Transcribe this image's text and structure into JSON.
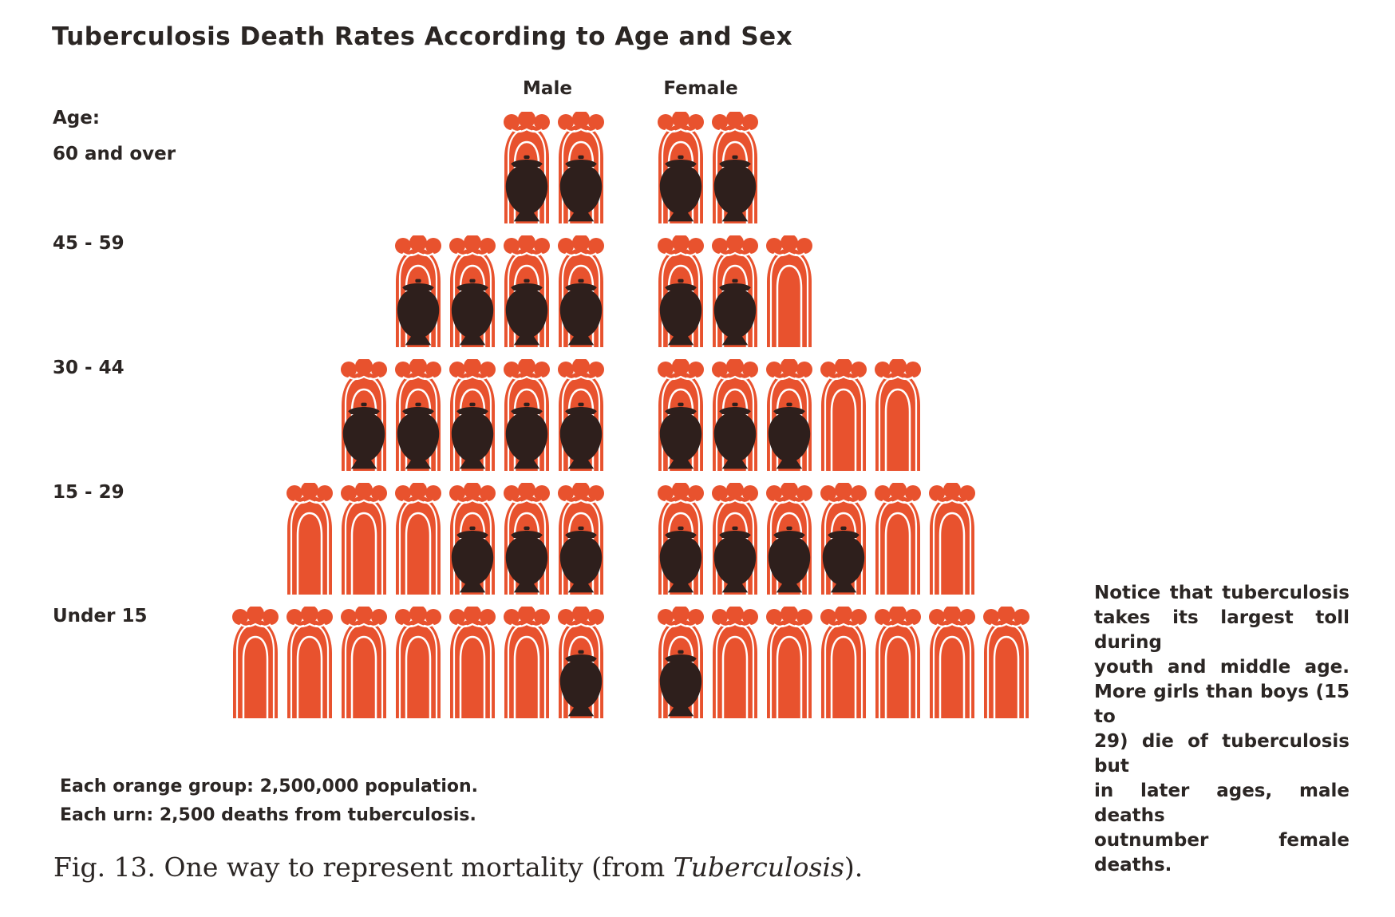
{
  "title": "Tuberculosis Death Rates According to Age and Sex",
  "columns": {
    "male": "Male",
    "female": "Female"
  },
  "age_heading": "Age:",
  "note_lines": [
    "Notice that tuberculosis",
    "takes its largest toll during",
    "youth and middle age.",
    "More girls than boys (15 to",
    "29) die of tuberculosis but",
    "in later ages, male deaths",
    "outnumber female deaths."
  ],
  "legend": {
    "population_line": "Each orange group: 2,500,000 population.",
    "urn_line": "Each urn: 2,500 deaths from tuberculosis."
  },
  "caption": {
    "prefix": "Fig. 13. One way to represent mortality (from ",
    "italic": "Tuberculosis",
    "suffix": ")."
  },
  "colors": {
    "population": "#e8522e",
    "urn": "#2e1f1c",
    "text": "#2b2624"
  },
  "icons": {
    "population": "people-group-icon",
    "deaths": "urn-icon"
  },
  "chart_data": {
    "type": "pictogram",
    "title": "Tuberculosis Death Rates According to Age and Sex",
    "population_unit": "Each orange group: 2,500,000 population.",
    "death_unit": "Each urn: 2,500 deaths from tuberculosis.",
    "categories": [
      "60 and over",
      "45 - 59",
      "30 - 44",
      "15 - 29",
      "Under 15"
    ],
    "series": [
      {
        "name": "Male",
        "population_groups": [
          2.2,
          4.3,
          5.5,
          6.6,
          7.5
        ],
        "urns": [
          2.4,
          4.5,
          5.0,
          3.7,
          1.0
        ]
      },
      {
        "name": "Female",
        "population_groups": [
          2.0,
          3.4,
          5.5,
          6.6,
          7.7
        ],
        "urns": [
          2.0,
          2.0,
          3.5,
          4.4,
          1.0
        ]
      }
    ]
  }
}
